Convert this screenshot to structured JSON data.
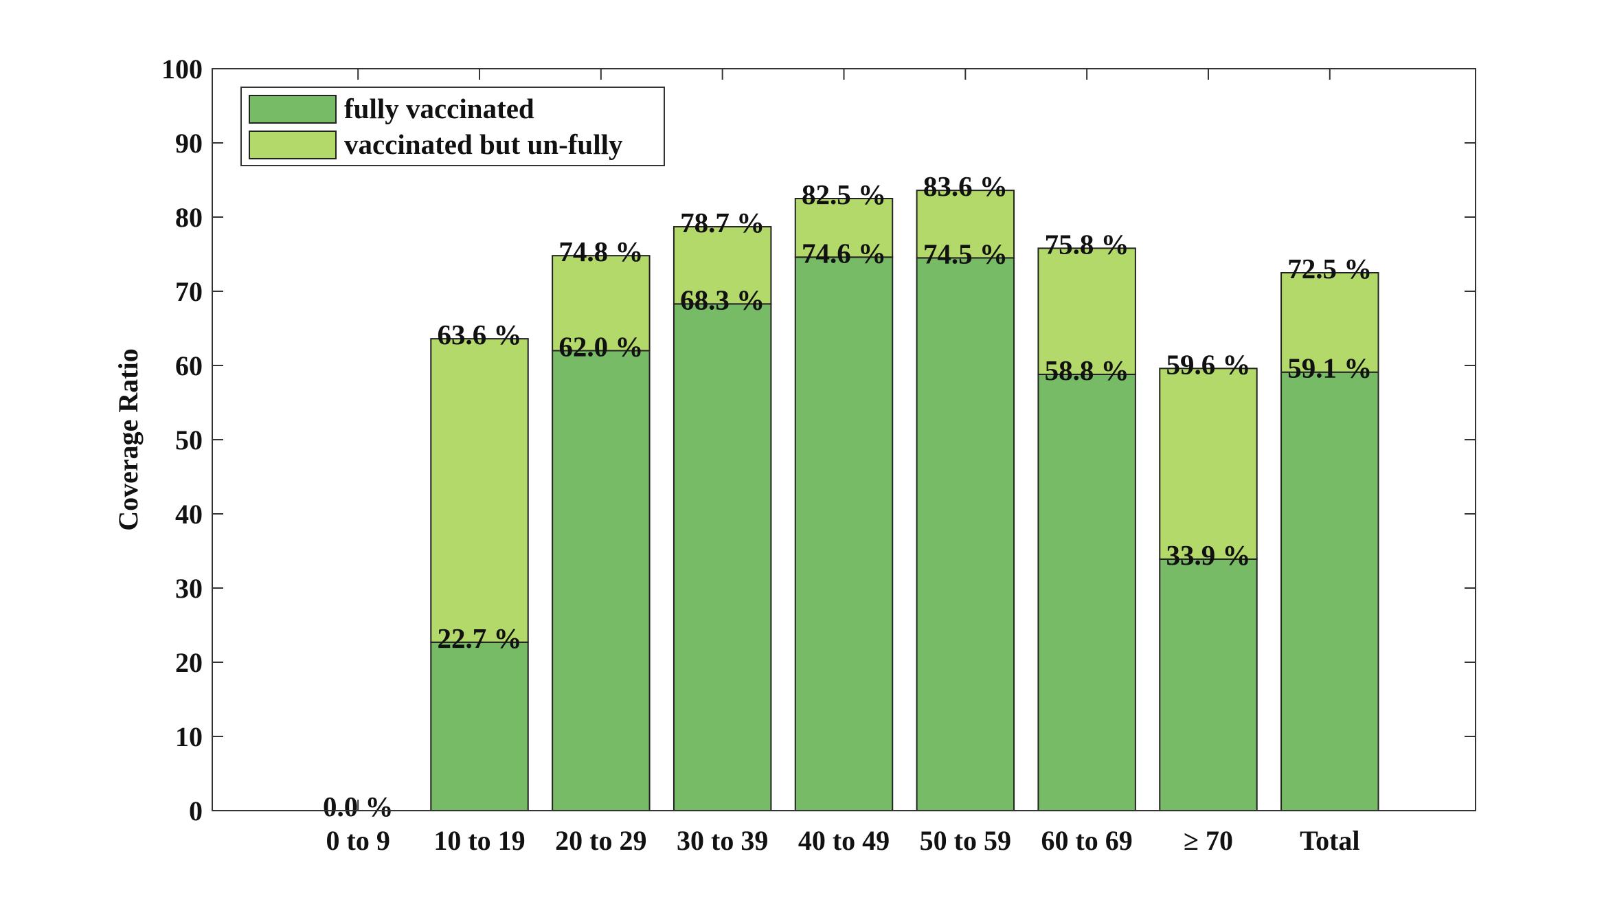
{
  "chart_data": {
    "type": "stacked_bar",
    "ylabel": "Coverage Ratio",
    "categories": [
      "0 to 9",
      "10 to 19",
      "20 to 29",
      "30 to 39",
      "40 to 49",
      "50 to 59",
      "60 to 69",
      "≥ 70",
      "Total"
    ],
    "series": [
      {
        "name": "fully vaccinated",
        "color": "#77bb66",
        "values": [
          0,
          22.7,
          62.0,
          68.3,
          74.6,
          74.5,
          58.8,
          33.9,
          59.1
        ],
        "value_labels": [
          null,
          "22.7 %",
          "62.0 %",
          "68.3 %",
          "74.6 %",
          "74.5 %",
          "58.8 %",
          "33.9 %",
          "59.1 %"
        ]
      },
      {
        "name": "vaccinated but un-fully",
        "color": "#b3d96a",
        "values": [
          0,
          40.9,
          12.8,
          10.4,
          7.9,
          9.1,
          17.0,
          25.7,
          13.4
        ]
      }
    ],
    "totals": [
      0.0,
      63.6,
      74.8,
      78.7,
      82.5,
      83.6,
      75.8,
      59.6,
      72.5
    ],
    "total_labels": [
      "0.0 %",
      "63.6 %",
      "74.8 %",
      "78.7 %",
      "82.5 %",
      "83.6 %",
      "75.8 %",
      "59.6 %",
      "72.5 %"
    ],
    "ylim": [
      0,
      100
    ],
    "yticks": [
      0,
      10,
      20,
      30,
      40,
      50,
      60,
      70,
      80,
      90,
      100
    ],
    "grid": false,
    "legend": "upper left"
  }
}
